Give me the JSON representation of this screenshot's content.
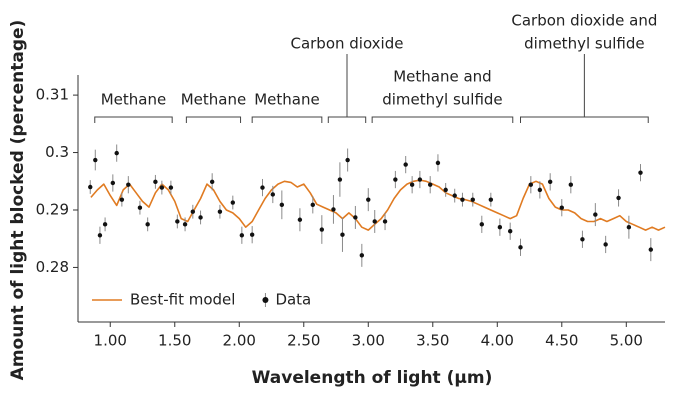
{
  "chart_data": {
    "type": "line",
    "x_label": "Wavelength of light (µm)",
    "y_label": "Amount of light blocked (percentage)",
    "xlim": [
      0.75,
      5.3
    ],
    "ylim": [
      0.2705,
      0.3135
    ],
    "xticks": [
      {
        "value": 1,
        "label": "1.00"
      },
      {
        "value": 1.5,
        "label": "1.50"
      },
      {
        "value": 2,
        "label": "2.00"
      },
      {
        "value": 2.5,
        "label": "2.50"
      },
      {
        "value": 3,
        "label": "3.00"
      },
      {
        "value": 3.5,
        "label": "3.50"
      },
      {
        "value": 4,
        "label": "4.00"
      },
      {
        "value": 4.5,
        "label": "4.50"
      },
      {
        "value": 5,
        "label": "5.00"
      }
    ],
    "yticks": [
      0.28,
      0.29,
      0.3,
      0.31
    ],
    "legend": "lower left",
    "series": [
      {
        "name": "Best-fit model",
        "type": "line",
        "color": "#e07b22",
        "x": [
          0.85,
          0.9,
          0.95,
          1.0,
          1.05,
          1.1,
          1.15,
          1.2,
          1.25,
          1.3,
          1.35,
          1.4,
          1.45,
          1.5,
          1.55,
          1.6,
          1.65,
          1.7,
          1.75,
          1.8,
          1.85,
          1.9,
          1.95,
          2.0,
          2.05,
          2.1,
          2.15,
          2.2,
          2.25,
          2.3,
          2.35,
          2.4,
          2.45,
          2.5,
          2.55,
          2.6,
          2.65,
          2.7,
          2.75,
          2.8,
          2.85,
          2.9,
          2.95,
          3.0,
          3.05,
          3.1,
          3.15,
          3.2,
          3.25,
          3.3,
          3.35,
          3.4,
          3.45,
          3.5,
          3.55,
          3.6,
          3.65,
          3.7,
          3.75,
          3.8,
          3.85,
          3.9,
          3.95,
          4.0,
          4.05,
          4.1,
          4.15,
          4.2,
          4.25,
          4.3,
          4.35,
          4.4,
          4.45,
          4.5,
          4.55,
          4.6,
          4.65,
          4.7,
          4.75,
          4.8,
          4.85,
          4.9,
          4.95,
          5.0,
          5.05,
          5.1,
          5.15,
          5.2,
          5.25,
          5.3
        ],
        "values": [
          0.2922,
          0.2935,
          0.2945,
          0.2925,
          0.2908,
          0.2935,
          0.2945,
          0.293,
          0.2915,
          0.2905,
          0.293,
          0.2945,
          0.2935,
          0.2915,
          0.2885,
          0.288,
          0.29,
          0.292,
          0.2945,
          0.2935,
          0.2915,
          0.29,
          0.2895,
          0.2885,
          0.287,
          0.288,
          0.29,
          0.292,
          0.2935,
          0.2945,
          0.295,
          0.2948,
          0.294,
          0.2945,
          0.293,
          0.291,
          0.2905,
          0.29,
          0.2895,
          0.2885,
          0.2895,
          0.2885,
          0.287,
          0.2865,
          0.2875,
          0.2885,
          0.29,
          0.292,
          0.2935,
          0.2945,
          0.295,
          0.2952,
          0.295,
          0.2945,
          0.294,
          0.293,
          0.2925,
          0.292,
          0.2918,
          0.2915,
          0.291,
          0.2905,
          0.29,
          0.2895,
          0.289,
          0.2885,
          0.289,
          0.292,
          0.2945,
          0.295,
          0.2945,
          0.292,
          0.2905,
          0.29,
          0.29,
          0.2895,
          0.2885,
          0.288,
          0.288,
          0.2885,
          0.288,
          0.2885,
          0.289,
          0.288,
          0.2875,
          0.287,
          0.2865,
          0.287,
          0.2865,
          0.287
        ]
      },
      {
        "name": "Data",
        "type": "scatter",
        "color": "#111111",
        "error_color": "#8a8a8a",
        "x": [
          0.845,
          0.884,
          0.92,
          0.96,
          1.02,
          1.05,
          1.09,
          1.14,
          1.23,
          1.29,
          1.35,
          1.4,
          1.47,
          1.52,
          1.58,
          1.64,
          1.7,
          1.79,
          1.85,
          1.95,
          2.02,
          2.1,
          2.18,
          2.26,
          2.33,
          2.47,
          2.57,
          2.64,
          2.73,
          2.78,
          2.8,
          2.84,
          2.9,
          2.95,
          3.0,
          3.05,
          3.13,
          3.21,
          3.29,
          3.34,
          3.4,
          3.48,
          3.54,
          3.6,
          3.67,
          3.73,
          3.81,
          3.88,
          3.95,
          4.02,
          4.1,
          4.18,
          4.26,
          4.33,
          4.41,
          4.5,
          4.57,
          4.66,
          4.76,
          4.84,
          4.94,
          5.02,
          5.11,
          5.19
        ],
        "values": [
          0.294,
          0.2987,
          0.2856,
          0.2875,
          0.2947,
          0.2999,
          0.2918,
          0.2944,
          0.2904,
          0.2875,
          0.2949,
          0.2939,
          0.2939,
          0.288,
          0.2875,
          0.2897,
          0.2887,
          0.2949,
          0.2897,
          0.2913,
          0.2856,
          0.2857,
          0.2939,
          0.2927,
          0.2909,
          0.2883,
          0.2909,
          0.2866,
          0.2901,
          0.2953,
          0.2857,
          0.2987,
          0.2887,
          0.2821,
          0.2918,
          0.288,
          0.288,
          0.2953,
          0.2979,
          0.2944,
          0.2953,
          0.2944,
          0.2982,
          0.2935,
          0.2925,
          0.2918,
          0.2918,
          0.2875,
          0.2918,
          0.287,
          0.2863,
          0.2835,
          0.2944,
          0.2935,
          0.2949,
          0.2904,
          0.2944,
          0.2849,
          0.2892,
          0.284,
          0.2921,
          0.287,
          0.2965,
          0.2831
        ],
        "errors": [
          0.0012,
          0.0018,
          0.0015,
          0.0012,
          0.0015,
          0.0015,
          0.0012,
          0.0015,
          0.0012,
          0.0012,
          0.0012,
          0.0012,
          0.0012,
          0.0012,
          0.0012,
          0.0012,
          0.0012,
          0.0015,
          0.0012,
          0.0012,
          0.0015,
          0.0015,
          0.0015,
          0.0015,
          0.0025,
          0.002,
          0.0015,
          0.0025,
          0.0025,
          0.003,
          0.003,
          0.002,
          0.002,
          0.002,
          0.002,
          0.002,
          0.0015,
          0.0015,
          0.0015,
          0.0015,
          0.0015,
          0.0015,
          0.0015,
          0.0012,
          0.0012,
          0.0012,
          0.0012,
          0.0015,
          0.0012,
          0.0015,
          0.0015,
          0.0015,
          0.0015,
          0.0015,
          0.0015,
          0.0015,
          0.0015,
          0.0015,
          0.002,
          0.0015,
          0.0015,
          0.002,
          0.0015,
          0.002
        ]
      }
    ],
    "annotations": [
      {
        "lines": [
          "Methane"
        ],
        "range": [
          0.88,
          1.48
        ],
        "pointer": false
      },
      {
        "lines": [
          "Methane"
        ],
        "range": [
          1.59,
          2.01
        ],
        "pointer": false
      },
      {
        "lines": [
          "Methane"
        ],
        "range": [
          2.1,
          2.64
        ],
        "pointer": false
      },
      {
        "lines": [
          "Carbon dioxide"
        ],
        "range": [
          2.69,
          2.98
        ],
        "pointer": true
      },
      {
        "lines": [
          "Methane and",
          "dimethyl sulfide"
        ],
        "range": [
          3.03,
          4.12
        ],
        "pointer": false
      },
      {
        "lines": [
          "Carbon dioxide and",
          "dimethyl sulfide"
        ],
        "range": [
          4.18,
          5.17
        ],
        "pointer": true
      }
    ]
  }
}
